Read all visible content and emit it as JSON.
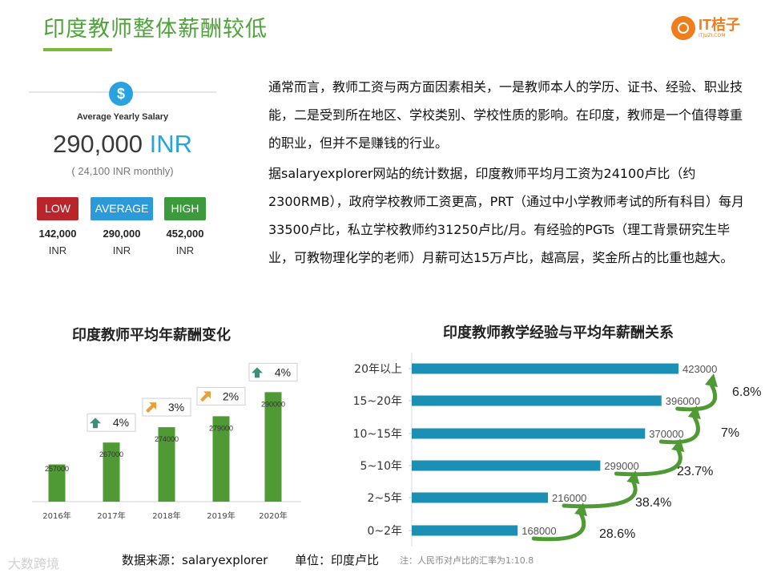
{
  "title": "印度教师整体薪酬较低",
  "logo": {
    "name": "IT桔子",
    "sub": "ITJUZI.COM"
  },
  "salary_widget": {
    "icon": "dollar-icon",
    "label": "Average Yearly Salary",
    "value": "290,000",
    "unit": "INR",
    "monthly": "( 24,100 INR monthly)",
    "levels": [
      {
        "label": "LOW",
        "amount": "142,000",
        "unit": "INR",
        "color": "#b8262b"
      },
      {
        "label": "AVERAGE",
        "amount": "290,000",
        "unit": "INR",
        "color": "#2c9ad9"
      },
      {
        "label": "HIGH",
        "amount": "452,000",
        "unit": "INR",
        "color": "#3c9a3c"
      }
    ]
  },
  "paragraphs": [
    "通常而言，教师工资与两方面因素相关，一是教师本人的学历、证书、经验、职业技能，二是受到所在地区、学校类别、学校性质的影响。在印度，教师是一个值得尊重的职业，但并不是赚钱的行业。",
    "据salaryexplorer网站的统计数据，印度教师平均月工资为24100卢比（约2300RMB），政府学校教师工资更高，PRT（通过中小学教师考试的所有科目）每月33500卢比，私立学校教师约31250卢比/月。有经验的PGTs（理工背景研究生毕业，可教物理化学的老师）月薪可达15万卢比，越高层，奖金所占的比重也越大。"
  ],
  "chart_data": [
    {
      "type": "bar",
      "title": "印度教师平均年薪酬变化",
      "categories": [
        "2016年",
        "2017年",
        "2018年",
        "2019年",
        "2020年"
      ],
      "values": [
        257000,
        267000,
        274000,
        279000,
        290000
      ],
      "growth": [
        "",
        "4%",
        "3%",
        "2%",
        "4%"
      ],
      "growth_icons": [
        "",
        "arrow-up-icon",
        "arrow-up-right-icon",
        "arrow-up-right-icon",
        "arrow-up-icon"
      ],
      "color": "#4f9a34",
      "ylim": [
        240000,
        300000
      ]
    },
    {
      "type": "bar",
      "orientation": "horizontal",
      "title": "印度教师教学经验与平均年薪酬关系",
      "categories": [
        "20年以上",
        "15~20年",
        "10~15年",
        "5~10年",
        "2~5年",
        "0~2年"
      ],
      "values": [
        423000,
        396000,
        370000,
        299000,
        216000,
        168000
      ],
      "increments": [
        "6.8%",
        "7%",
        "23.7%",
        "38.4%",
        "28.6%"
      ],
      "color": "#1c8fb5",
      "arrow_color": "#4f9a34",
      "xlim": [
        0,
        423000
      ]
    }
  ],
  "footer": {
    "source": "数据来源：salaryexplorer",
    "unit": "单位：印度卢比",
    "note": "注：人民币对卢比的汇率为1:10.8",
    "watermark": "大数跨境"
  }
}
